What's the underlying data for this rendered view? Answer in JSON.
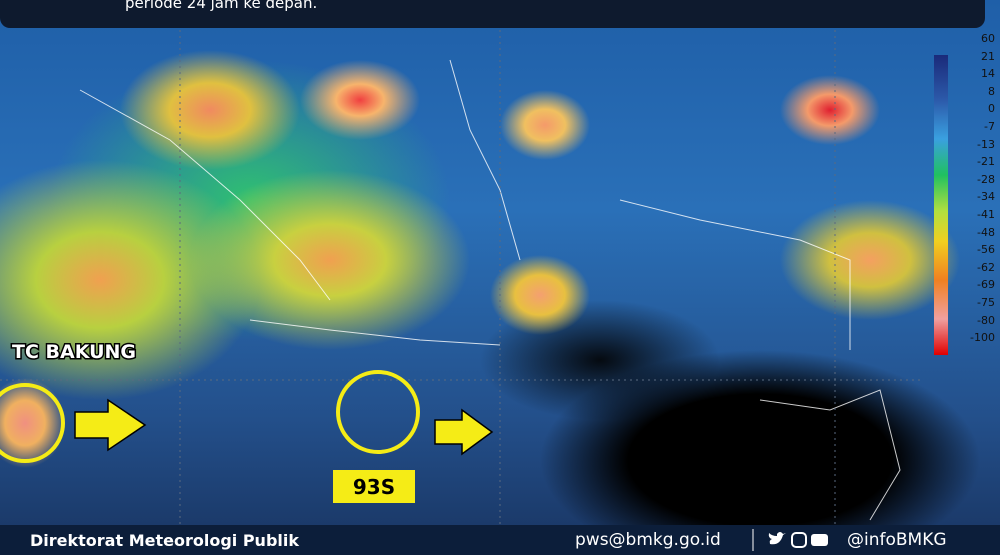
{
  "banner": {
    "text": "periode 24 jam ke depan."
  },
  "colorbar": {
    "labels": [
      60,
      21,
      14,
      8,
      0,
      -7,
      -13,
      -21,
      -28,
      -34,
      -41,
      -48,
      -56,
      -62,
      -69,
      -75,
      -80,
      -100
    ]
  },
  "annotations": {
    "cyclone": "TC BAKUNG",
    "system": "93S"
  },
  "footer": {
    "org": "Direktorat Meteorologi Publik",
    "email": "pws@bmkg.go.id",
    "handle": "@infoBMKG"
  }
}
